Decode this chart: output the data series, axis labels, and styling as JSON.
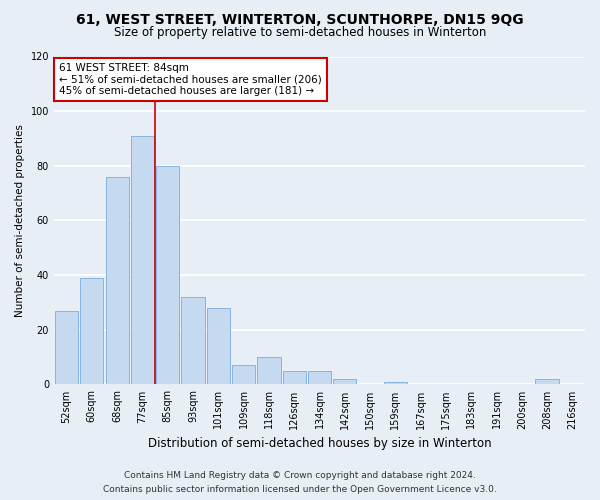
{
  "title": "61, WEST STREET, WINTERTON, SCUNTHORPE, DN15 9QG",
  "subtitle": "Size of property relative to semi-detached houses in Winterton",
  "xlabel": "Distribution of semi-detached houses by size in Winterton",
  "ylabel": "Number of semi-detached properties",
  "categories": [
    "52sqm",
    "60sqm",
    "68sqm",
    "77sqm",
    "85sqm",
    "93sqm",
    "101sqm",
    "109sqm",
    "118sqm",
    "126sqm",
    "134sqm",
    "142sqm",
    "150sqm",
    "159sqm",
    "167sqm",
    "175sqm",
    "183sqm",
    "191sqm",
    "200sqm",
    "208sqm",
    "216sqm"
  ],
  "values": [
    27,
    39,
    76,
    91,
    80,
    32,
    28,
    7,
    10,
    5,
    5,
    2,
    0,
    1,
    0,
    0,
    0,
    0,
    0,
    2,
    0
  ],
  "bar_color": "#c5d9f0",
  "bar_edge_color": "#7aabdb",
  "annotation_title": "61 WEST STREET: 84sqm",
  "annotation_line1": "← 51% of semi-detached houses are smaller (206)",
  "annotation_line2": "45% of semi-detached houses are larger (181) →",
  "annotation_box_color": "#ffffff",
  "annotation_box_edge": "#cc0000",
  "ylim": [
    0,
    120
  ],
  "yticks": [
    0,
    20,
    40,
    60,
    80,
    100,
    120
  ],
  "footer_line1": "Contains HM Land Registry data © Crown copyright and database right 2024.",
  "footer_line2": "Contains public sector information licensed under the Open Government Licence v3.0.",
  "bg_color": "#e8eef5",
  "plot_bg_color": "#e8eef5",
  "grid_color": "#ffffff",
  "title_fontsize": 10,
  "subtitle_fontsize": 8.5,
  "xlabel_fontsize": 8.5,
  "ylabel_fontsize": 7.5,
  "tick_fontsize": 7,
  "annotation_fontsize": 7.5,
  "footer_fontsize": 6.5,
  "red_line_x": 3.5
}
